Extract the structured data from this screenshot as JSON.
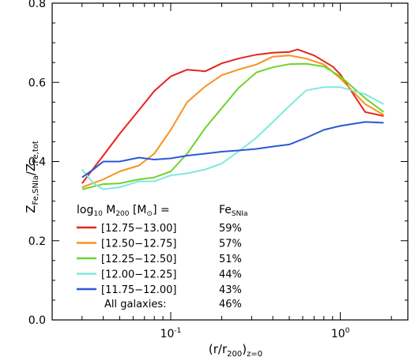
{
  "chart_data": {
    "type": "line",
    "xscale": "log",
    "xlim": [
      0.02,
      2.5
    ],
    "ylim": [
      0.0,
      0.8
    ],
    "grid": false,
    "yticks": [
      {
        "value": 0.0,
        "label": "0.0"
      },
      {
        "value": 0.2,
        "label": "0.2"
      },
      {
        "value": 0.4,
        "label": "0.4"
      },
      {
        "value": 0.6,
        "label": "0.6"
      },
      {
        "value": 0.8,
        "label": "0.8"
      }
    ],
    "xticks": [
      {
        "value": 0.1,
        "base": "10",
        "exp": "-1"
      },
      {
        "value": 1.0,
        "base": "10",
        "exp": "0"
      }
    ],
    "xlabel": {
      "main": "(r/r",
      "sub1": "200",
      "mid": ")",
      "sub2": "z=0"
    },
    "ylabel": {
      "z1": "Z",
      "sub1": "Fe,SNIa",
      "slash": "/Z",
      "sub2": "Fe,tot"
    },
    "legend": {
      "placement": "bottom-left",
      "header_left": {
        "pre": "log",
        "sub10": "10",
        "mid": " M",
        "sub200": "200",
        "post": " [M",
        "sun": "⊙",
        "close": "] ="
      },
      "header_right": {
        "pre": "Fe",
        "sub": "SNIa"
      },
      "all_label": "All galaxies:",
      "all_value": "46%"
    },
    "series": [
      {
        "name": "[12.75−13.00]",
        "color": "#e8231d",
        "frac": "59%",
        "x": [
          0.03,
          0.04,
          0.05,
          0.065,
          0.08,
          0.1,
          0.125,
          0.16,
          0.2,
          0.25,
          0.32,
          0.4,
          0.5,
          0.56,
          0.7,
          0.9,
          1.0,
          1.4,
          1.8
        ],
        "y": [
          0.345,
          0.415,
          0.47,
          0.53,
          0.578,
          0.615,
          0.632,
          0.628,
          0.648,
          0.66,
          0.67,
          0.675,
          0.677,
          0.683,
          0.668,
          0.64,
          0.62,
          0.525,
          0.515
        ]
      },
      {
        "name": "[12.50−12.75]",
        "color": "#f7931e",
        "frac": "57%",
        "x": [
          0.03,
          0.04,
          0.05,
          0.065,
          0.08,
          0.1,
          0.125,
          0.16,
          0.2,
          0.25,
          0.32,
          0.4,
          0.5,
          0.63,
          0.8,
          1.0,
          1.4,
          1.8
        ],
        "y": [
          0.335,
          0.355,
          0.375,
          0.39,
          0.42,
          0.48,
          0.55,
          0.59,
          0.618,
          0.632,
          0.645,
          0.665,
          0.668,
          0.66,
          0.645,
          0.61,
          0.545,
          0.518
        ]
      },
      {
        "name": "[12.25−12.50]",
        "color": "#6fd42a",
        "frac": "51%",
        "x": [
          0.03,
          0.04,
          0.05,
          0.065,
          0.08,
          0.1,
          0.125,
          0.16,
          0.2,
          0.25,
          0.32,
          0.4,
          0.5,
          0.63,
          0.8,
          1.0,
          1.4,
          1.8
        ],
        "y": [
          0.33,
          0.343,
          0.345,
          0.355,
          0.36,
          0.375,
          0.42,
          0.485,
          0.535,
          0.585,
          0.625,
          0.638,
          0.646,
          0.647,
          0.64,
          0.615,
          0.56,
          0.525
        ]
      },
      {
        "name": "[12.00−12.25]",
        "color": "#7fe8e0",
        "frac": "44%",
        "x": [
          0.03,
          0.035,
          0.04,
          0.05,
          0.065,
          0.08,
          0.1,
          0.125,
          0.16,
          0.2,
          0.25,
          0.32,
          0.4,
          0.5,
          0.63,
          0.8,
          1.0,
          1.4,
          1.8
        ],
        "y": [
          0.38,
          0.345,
          0.33,
          0.335,
          0.35,
          0.35,
          0.365,
          0.37,
          0.38,
          0.395,
          0.425,
          0.46,
          0.5,
          0.54,
          0.58,
          0.588,
          0.588,
          0.57,
          0.545
        ]
      },
      {
        "name": "[11.75−12.00]",
        "color": "#2b59d6",
        "frac": "43%",
        "x": [
          0.03,
          0.035,
          0.04,
          0.05,
          0.065,
          0.08,
          0.1,
          0.125,
          0.16,
          0.2,
          0.25,
          0.32,
          0.4,
          0.5,
          0.63,
          0.8,
          1.0,
          1.4,
          1.8
        ],
        "y": [
          0.36,
          0.38,
          0.4,
          0.4,
          0.41,
          0.405,
          0.408,
          0.415,
          0.42,
          0.425,
          0.428,
          0.432,
          0.438,
          0.443,
          0.46,
          0.48,
          0.49,
          0.5,
          0.498
        ]
      }
    ]
  }
}
